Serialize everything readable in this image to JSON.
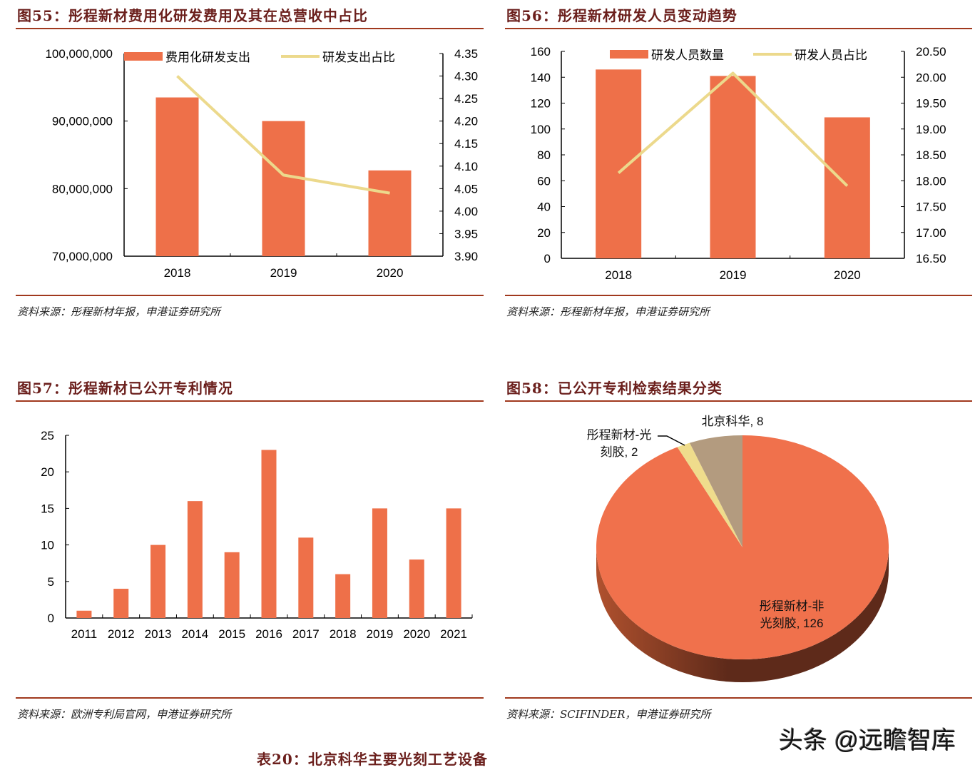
{
  "colors": {
    "bar": "#ee7049",
    "line": "#ecd98c",
    "title": "#6b1f1c",
    "rule": "#a0391e",
    "pie_main": "#f0714c",
    "pie_side_dark": "#5e2a1a",
    "pie_side_light": "#b0512e",
    "pie_gray": "#b39b7f",
    "pie_yellow": "#efdc8c"
  },
  "figures": {
    "fig55": {
      "title": "图55：彤程新材费用化研发费用及其在总营收中占比",
      "source": "资料来源：彤程新材年报，申港证券研究所"
    },
    "fig56": {
      "title": "图56：彤程新材研发人员变动趋势",
      "source": "资料来源：彤程新材年报，申港证券研究所"
    },
    "fig57": {
      "title": "图57：彤程新材已公开专利情况",
      "source": "资料来源：欧洲专利局官网，申港证券研究所"
    },
    "fig58": {
      "title": "图58：已公开专利检索结果分类",
      "source": "资料来源：SCIFINDER，申港证券研究所"
    }
  },
  "table_title": "表20：北京科华主要光刻工艺设备",
  "watermark": "头条 @远瞻智库",
  "chart_data": [
    {
      "id": "fig55",
      "type": "bar+line",
      "title": "彤程新材费用化研发费用及其在总营收中占比",
      "categories": [
        "2018",
        "2019",
        "2020"
      ],
      "series": [
        {
          "name": "费用化研发支出",
          "type": "bar",
          "axis": "left",
          "values": [
            93500000,
            90000000,
            82700000
          ]
        },
        {
          "name": "研发支出占比",
          "type": "line",
          "axis": "right",
          "values": [
            4.3,
            4.08,
            4.04
          ]
        }
      ],
      "y_left": {
        "min": 70000000,
        "max": 100000000,
        "ticks": [
          "70,000,000",
          "80,000,000",
          "90,000,000",
          "100,000,000"
        ]
      },
      "y_right": {
        "min": 3.9,
        "max": 4.35,
        "ticks": [
          "3.90",
          "3.95",
          "4.00",
          "4.05",
          "4.10",
          "4.15",
          "4.20",
          "4.25",
          "4.30",
          "4.35"
        ]
      },
      "legend_position": "top",
      "grid": false
    },
    {
      "id": "fig56",
      "type": "bar+line",
      "title": "彤程新材研发人员变动趋势",
      "categories": [
        "2018",
        "2019",
        "2020"
      ],
      "series": [
        {
          "name": "研发人员数量",
          "type": "bar",
          "axis": "left",
          "values": [
            146,
            141,
            109
          ]
        },
        {
          "name": "研发人员占比",
          "type": "line",
          "axis": "right",
          "values": [
            18.15,
            20.08,
            17.9
          ]
        }
      ],
      "y_left": {
        "min": 0,
        "max": 160,
        "ticks": [
          "0",
          "20",
          "40",
          "60",
          "80",
          "100",
          "120",
          "140",
          "160"
        ]
      },
      "y_right": {
        "min": 16.5,
        "max": 20.5,
        "ticks": [
          "16.50",
          "17.00",
          "17.50",
          "18.00",
          "18.50",
          "19.00",
          "19.50",
          "20.00",
          "20.50"
        ]
      },
      "legend_position": "top",
      "grid": false
    },
    {
      "id": "fig57",
      "type": "bar",
      "title": "彤程新材已公开专利情况",
      "categories": [
        "2011",
        "2012",
        "2013",
        "2014",
        "2015",
        "2016",
        "2017",
        "2018",
        "2019",
        "2020",
        "2021"
      ],
      "values": [
        1,
        4,
        10,
        16,
        9,
        23,
        11,
        6,
        15,
        8,
        15
      ],
      "ylim": [
        0,
        25
      ],
      "y_ticks": [
        "0",
        "5",
        "10",
        "15",
        "20",
        "25"
      ],
      "grid": false
    },
    {
      "id": "fig58",
      "type": "pie",
      "title": "已公开专利检索结果分类",
      "slices": [
        {
          "label": "彤程新材-非光刻胶",
          "value": 126,
          "label_lines": [
            "彤程新材-非",
            "光刻胶, 126"
          ]
        },
        {
          "label": "彤程新材-光刻胶",
          "value": 2,
          "label_lines": [
            "彤程新材-光",
            "刻胶, 2"
          ]
        },
        {
          "label": "北京科华",
          "value": 8,
          "label_lines": [
            "北京科华, 8"
          ]
        }
      ]
    }
  ]
}
